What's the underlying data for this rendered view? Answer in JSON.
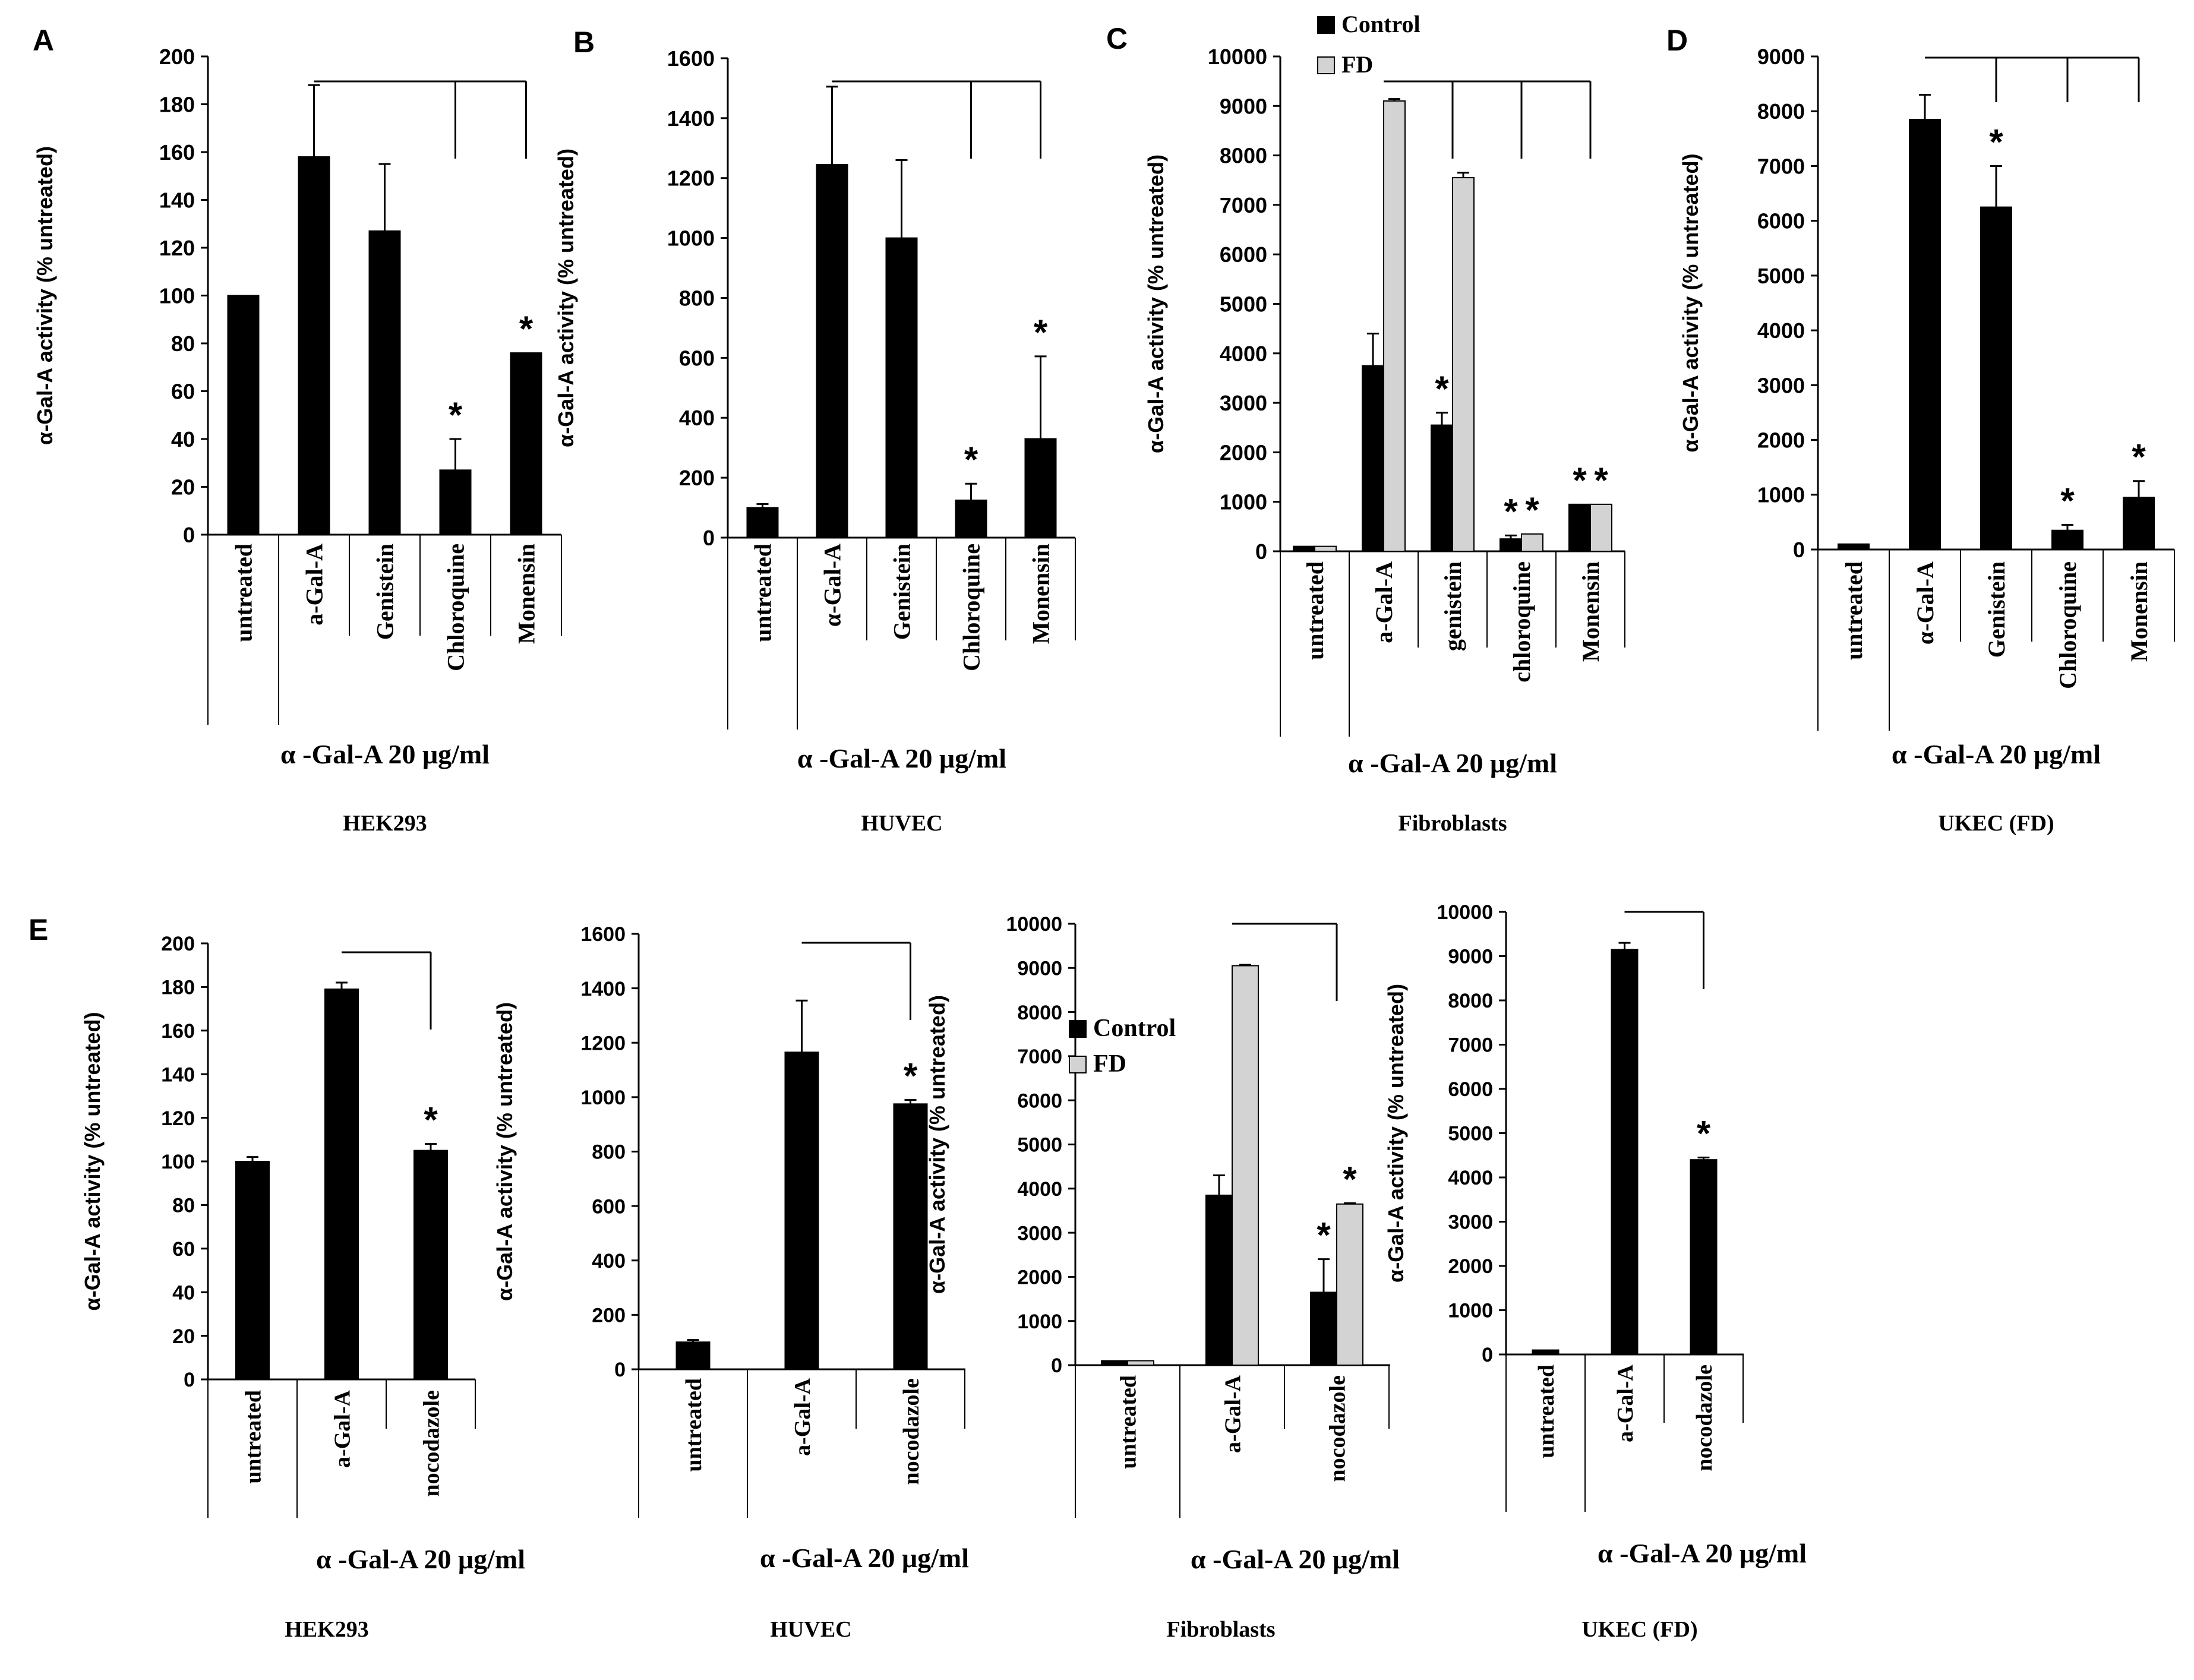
{
  "figure_title": "",
  "colors": {
    "control": "#000000",
    "fd": "#d3d3d3",
    "axis": "#000000"
  },
  "legend": {
    "control": "Control",
    "fd": "FD"
  },
  "chart_data": [
    {
      "id": "A",
      "panel_label": "A",
      "type": "bar",
      "cell_line": "HEK293",
      "ylabel": "α-Gal-A activity  (% untreated)",
      "group_label": "α -Gal-A 20 μg/ml",
      "yticks": [
        0,
        20,
        40,
        60,
        80,
        100,
        120,
        140,
        160,
        180,
        200
      ],
      "ylim": [
        0,
        200
      ],
      "categories": [
        "untreated",
        "a-Gal-A",
        "Genistein",
        "Chloroquine",
        "Monensin"
      ],
      "series": [
        {
          "name": "Control",
          "values": [
            100,
            158,
            127,
            27,
            76
          ],
          "errors": [
            0,
            30,
            28,
            13,
            0
          ]
        }
      ],
      "significance": [
        "",
        "",
        "",
        "*",
        "*"
      ],
      "comparison": {
        "from": 1,
        "to": [
          3,
          4
        ]
      }
    },
    {
      "id": "B",
      "panel_label": "B",
      "type": "bar",
      "cell_line": "HUVEC",
      "ylabel": "α-Gal-A activity  (% untreated)",
      "group_label": "α -Gal-A 20 μg/ml",
      "yticks": [
        0,
        200,
        400,
        600,
        800,
        1000,
        1200,
        1400,
        1600
      ],
      "ylim": [
        0,
        1600
      ],
      "categories": [
        "untreated",
        "α-Gal-A",
        "Genistein",
        "Chloroquine",
        "Monensin"
      ],
      "series": [
        {
          "name": "Control",
          "values": [
            100,
            1245,
            1000,
            125,
            330
          ],
          "errors": [
            12,
            260,
            260,
            55,
            275
          ]
        }
      ],
      "significance": [
        "",
        "",
        "",
        "*",
        "*"
      ],
      "comparison": {
        "from": 1,
        "to": [
          3,
          4
        ]
      }
    },
    {
      "id": "C",
      "panel_label": "C",
      "type": "bar",
      "cell_line": "Fibroblasts",
      "ylabel": "α-Gal-A activity  (% untreated)",
      "group_label": "α -Gal-A 20 μg/ml",
      "yticks": [
        0,
        1000,
        2000,
        3000,
        4000,
        5000,
        6000,
        7000,
        8000,
        9000,
        10000
      ],
      "ylim": [
        0,
        10000
      ],
      "categories": [
        "untreated",
        "a-Gal-A",
        "genistein",
        "chloroquine",
        "Monensin"
      ],
      "series": [
        {
          "name": "Control",
          "values": [
            100,
            3750,
            2550,
            250,
            950
          ],
          "errors": [
            0,
            650,
            250,
            70,
            0
          ]
        },
        {
          "name": "FD",
          "values": [
            100,
            9100,
            7550,
            350,
            950
          ],
          "errors": [
            0,
            40,
            100,
            0,
            0
          ]
        }
      ],
      "significance": [
        [
          "",
          ""
        ],
        [
          "",
          ""
        ],
        [
          "*",
          ""
        ],
        [
          "*",
          "*"
        ],
        [
          "*",
          "*"
        ]
      ],
      "comparison": {
        "from": 1,
        "to": [
          2,
          3,
          4
        ]
      }
    },
    {
      "id": "D",
      "panel_label": "D",
      "type": "bar",
      "cell_line": "UKEC (FD)",
      "ylabel": "α-Gal-A activity  (% untreated)",
      "group_label": "α -Gal-A 20 μg/ml",
      "yticks": [
        0,
        1000,
        2000,
        3000,
        4000,
        5000,
        6000,
        7000,
        8000,
        9000
      ],
      "ylim": [
        0,
        9000
      ],
      "categories": [
        "untreated",
        "α-Gal-A",
        "Genistein",
        "Chloroquine",
        "Monensin"
      ],
      "series": [
        {
          "name": "Control",
          "values": [
            100,
            7850,
            6250,
            350,
            950
          ],
          "errors": [
            0,
            450,
            750,
            100,
            300
          ]
        }
      ],
      "significance": [
        "",
        "",
        "*",
        "*",
        "*"
      ],
      "comparison": {
        "from": 1,
        "to": [
          2,
          3,
          4
        ]
      }
    },
    {
      "id": "E1",
      "panel_label": "E",
      "type": "bar",
      "cell_line": "HEK293",
      "ylabel": "α-Gal-A activity  (% untreated)",
      "group_label": "α -Gal-A 20 μg/ml",
      "yticks": [
        0,
        20,
        40,
        60,
        80,
        100,
        120,
        140,
        160,
        180,
        200
      ],
      "ylim": [
        0,
        200
      ],
      "categories": [
        "untreated",
        "a-Gal-A",
        "nocodazole"
      ],
      "series": [
        {
          "name": "Control",
          "values": [
            100,
            179,
            105
          ],
          "errors": [
            2,
            3,
            3
          ]
        }
      ],
      "significance": [
        "",
        "",
        "*"
      ],
      "comparison": {
        "from": 1,
        "to": [
          2
        ]
      }
    },
    {
      "id": "E2",
      "panel_label": "",
      "type": "bar",
      "cell_line": "HUVEC",
      "ylabel": "α-Gal-A activity  (% untreated)",
      "group_label": "α -Gal-A 20 μg/ml",
      "yticks": [
        0,
        200,
        400,
        600,
        800,
        1000,
        1200,
        1400,
        1600
      ],
      "ylim": [
        0,
        1600
      ],
      "categories": [
        "untreated",
        "a-Gal-A",
        "nocodazole"
      ],
      "series": [
        {
          "name": "Control",
          "values": [
            100,
            1165,
            975
          ],
          "errors": [
            8,
            190,
            15
          ]
        }
      ],
      "significance": [
        "",
        "",
        "*"
      ],
      "comparison": {
        "from": 1,
        "to": [
          2
        ]
      }
    },
    {
      "id": "E3",
      "panel_label": "",
      "type": "bar",
      "cell_line": "Fibroblasts",
      "ylabel": "α-Gal-A activity  (% untreated)",
      "group_label": "α -Gal-A 20 μg/ml",
      "yticks": [
        0,
        1000,
        2000,
        3000,
        4000,
        5000,
        6000,
        7000,
        8000,
        9000,
        10000
      ],
      "ylim": [
        0,
        10000
      ],
      "categories": [
        "untreated",
        "a-Gal-A",
        "nocodazole"
      ],
      "series": [
        {
          "name": "Control",
          "values": [
            100,
            3850,
            1650
          ],
          "errors": [
            0,
            450,
            750
          ]
        },
        {
          "name": "FD",
          "values": [
            100,
            9050,
            3650
          ],
          "errors": [
            0,
            20,
            20
          ]
        }
      ],
      "significance": [
        [
          "",
          ""
        ],
        [
          "",
          ""
        ],
        [
          "*",
          "*"
        ]
      ],
      "comparison": {
        "from": 1,
        "to": [
          2
        ]
      },
      "legend_inside": true
    },
    {
      "id": "E4",
      "panel_label": "",
      "type": "bar",
      "cell_line": "UKEC (FD)",
      "ylabel": "α-Gal-A activity  (% untreated)",
      "group_label": "α -Gal-A 20 μg/ml",
      "yticks": [
        0,
        1000,
        2000,
        3000,
        4000,
        5000,
        6000,
        7000,
        8000,
        9000,
        10000
      ],
      "ylim": [
        0,
        10000
      ],
      "categories": [
        "untreated",
        "a-Gal-A",
        "nocodazole"
      ],
      "series": [
        {
          "name": "Control",
          "values": [
            100,
            9150,
            4400
          ],
          "errors": [
            0,
            150,
            50
          ]
        }
      ],
      "significance": [
        "",
        "",
        "*"
      ],
      "comparison": {
        "from": 1,
        "to": [
          2
        ]
      }
    }
  ]
}
